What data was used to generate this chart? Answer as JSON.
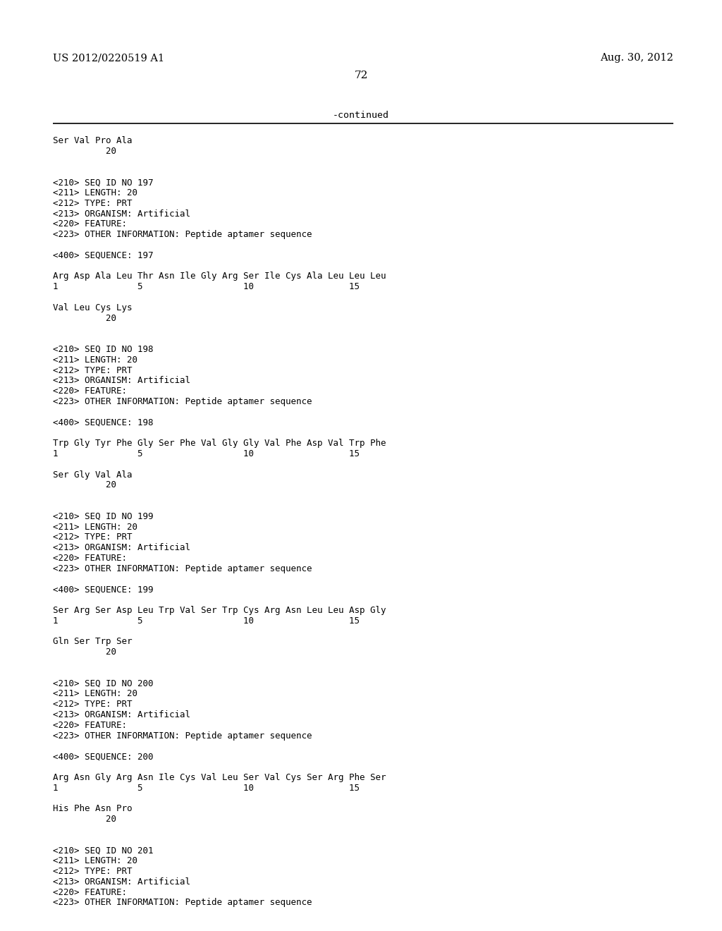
{
  "header_left": "US 2012/0220519 A1",
  "header_right": "Aug. 30, 2012",
  "page_number": "72",
  "continued_text": "-continued",
  "background_color": "#ffffff",
  "text_color": "#000000",
  "lines": [
    "Ser Val Pro Ala",
    "          20",
    "",
    "",
    "<210> SEQ ID NO 197",
    "<211> LENGTH: 20",
    "<212> TYPE: PRT",
    "<213> ORGANISM: Artificial",
    "<220> FEATURE:",
    "<223> OTHER INFORMATION: Peptide aptamer sequence",
    "",
    "<400> SEQUENCE: 197",
    "",
    "Arg Asp Ala Leu Thr Asn Ile Gly Arg Ser Ile Cys Ala Leu Leu Leu",
    "1               5                   10                  15",
    "",
    "Val Leu Cys Lys",
    "          20",
    "",
    "",
    "<210> SEQ ID NO 198",
    "<211> LENGTH: 20",
    "<212> TYPE: PRT",
    "<213> ORGANISM: Artificial",
    "<220> FEATURE:",
    "<223> OTHER INFORMATION: Peptide aptamer sequence",
    "",
    "<400> SEQUENCE: 198",
    "",
    "Trp Gly Tyr Phe Gly Ser Phe Val Gly Gly Val Phe Asp Val Trp Phe",
    "1               5                   10                  15",
    "",
    "Ser Gly Val Ala",
    "          20",
    "",
    "",
    "<210> SEQ ID NO 199",
    "<211> LENGTH: 20",
    "<212> TYPE: PRT",
    "<213> ORGANISM: Artificial",
    "<220> FEATURE:",
    "<223> OTHER INFORMATION: Peptide aptamer sequence",
    "",
    "<400> SEQUENCE: 199",
    "",
    "Ser Arg Ser Asp Leu Trp Val Ser Trp Cys Arg Asn Leu Leu Asp Gly",
    "1               5                   10                  15",
    "",
    "Gln Ser Trp Ser",
    "          20",
    "",
    "",
    "<210> SEQ ID NO 200",
    "<211> LENGTH: 20",
    "<212> TYPE: PRT",
    "<213> ORGANISM: Artificial",
    "<220> FEATURE:",
    "<223> OTHER INFORMATION: Peptide aptamer sequence",
    "",
    "<400> SEQUENCE: 200",
    "",
    "Arg Asn Gly Arg Asn Ile Cys Val Leu Ser Val Cys Ser Arg Phe Ser",
    "1               5                   10                  15",
    "",
    "His Phe Asn Pro",
    "          20",
    "",
    "",
    "<210> SEQ ID NO 201",
    "<211> LENGTH: 20",
    "<212> TYPE: PRT",
    "<213> ORGANISM: Artificial",
    "<220> FEATURE:",
    "<223> OTHER INFORMATION: Peptide aptamer sequence"
  ]
}
